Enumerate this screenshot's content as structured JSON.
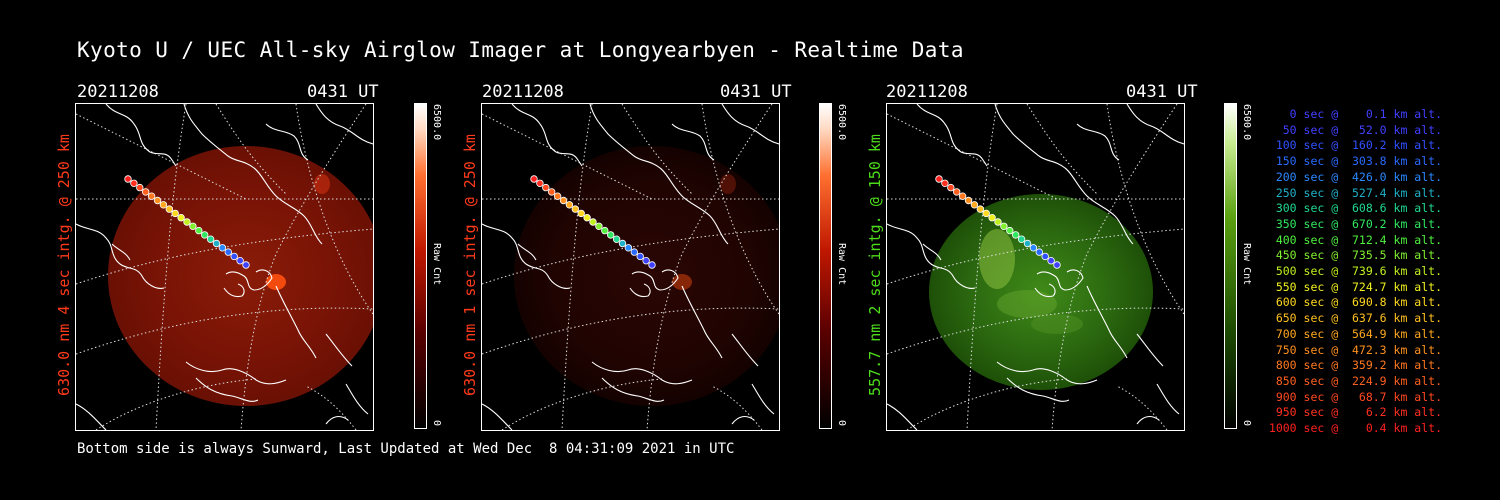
{
  "title": "Kyoto U / UEC All-sky Airglow Imager at Longyearbyen - Realtime Data",
  "panels": [
    {
      "date": "20211208",
      "time": "0431 UT",
      "label": "630.0 nm 4 sec intg. @ 250 km",
      "label_color": "#ff3a1a",
      "cbar_max": "6500.0",
      "cbar_unit": "Raw Cnt",
      "cbar_min": "0",
      "scheme": "red",
      "brightness": "high"
    },
    {
      "date": "20211208",
      "time": "0431 UT",
      "label": "630.0 nm 1 sec intg. @ 250 km",
      "label_color": "#ff3a1a",
      "cbar_max": "6500.0",
      "cbar_unit": "Raw Cnt",
      "cbar_min": "0",
      "scheme": "red",
      "brightness": "low"
    },
    {
      "date": "20211208",
      "time": "0431 UT",
      "label": "557.7 nm 2 sec intg. @ 150 km",
      "label_color": "#4ddc1a",
      "cbar_max": "6500.0",
      "cbar_unit": "Raw Cnt",
      "cbar_min": "0",
      "scheme": "green",
      "brightness": "medium"
    }
  ],
  "legend": [
    {
      "text": "0 sec @    0.1 km alt.",
      "color": "#4040ff"
    },
    {
      "text": "50 sec @   52.0 km alt.",
      "color": "#4040ff"
    },
    {
      "text": "100 sec @  160.2 km alt.",
      "color": "#3050ff"
    },
    {
      "text": "150 sec @  303.8 km alt.",
      "color": "#2a6aff"
    },
    {
      "text": "200 sec @  426.0 km alt.",
      "color": "#2a88ff"
    },
    {
      "text": "250 sec @  527.4 km alt.",
      "color": "#20b0c8"
    },
    {
      "text": "300 sec @  608.6 km alt.",
      "color": "#20d890"
    },
    {
      "text": "350 sec @  670.2 km alt.",
      "color": "#30e860"
    },
    {
      "text": "400 sec @  712.4 km alt.",
      "color": "#50f040"
    },
    {
      "text": "450 sec @  735.5 km alt.",
      "color": "#80f030"
    },
    {
      "text": "500 sec @  739.6 km alt.",
      "color": "#c0f020"
    },
    {
      "text": "550 sec @  724.7 km alt.",
      "color": "#f0f020"
    },
    {
      "text": "600 sec @  690.8 km alt.",
      "color": "#ffd820"
    },
    {
      "text": "650 sec @  637.6 km alt.",
      "color": "#ffc020"
    },
    {
      "text": "700 sec @  564.9 km alt.",
      "color": "#ffa820"
    },
    {
      "text": "750 sec @  472.3 km alt.",
      "color": "#ff9020"
    },
    {
      "text": "800 sec @  359.2 km alt.",
      "color": "#ff7820"
    },
    {
      "text": "850 sec @  224.9 km alt.",
      "color": "#ff6020"
    },
    {
      "text": "900 sec @   68.7 km alt.",
      "color": "#ff4820"
    },
    {
      "text": "950 sec @    6.2 km alt.",
      "color": "#ff3020"
    },
    {
      "text": "1000 sec @    0.4 km alt.",
      "color": "#ff2020"
    }
  ],
  "footer": "Bottom side is always Sunward, Last Updated at Wed Dec  8 04:31:09 2021 in UTC"
}
